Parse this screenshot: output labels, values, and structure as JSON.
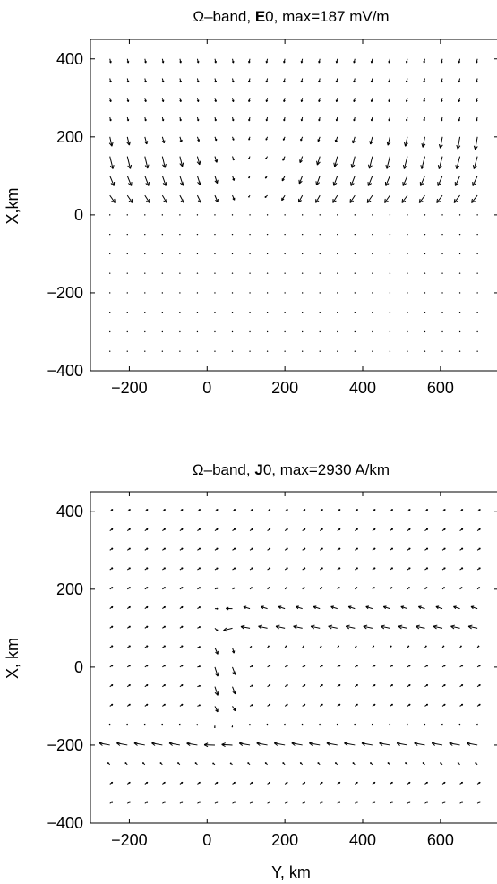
{
  "chart_data": [
    {
      "type": "quiver",
      "title": "Ω–band, E0, max=187 mV/m",
      "title_parts": {
        "prefix": "Ω–band, ",
        "bold": "E",
        "suffix": "0, max=187 mV/m"
      },
      "xlabel": "",
      "ylabel": "X,km",
      "xlim": [
        -300,
        750
      ],
      "ylim": [
        -400,
        450
      ],
      "xticks": [
        "−200",
        "0",
        "200",
        "400",
        "600"
      ],
      "xtick_values": [
        -200,
        0,
        200,
        400,
        600
      ],
      "yticks": [
        "400",
        "200",
        "0",
        "−200",
        "−400"
      ],
      "ytick_values": [
        400,
        200,
        0,
        -200,
        -400
      ],
      "grid": false,
      "field": "electric",
      "max_value": 187,
      "unit": "mV/m"
    },
    {
      "type": "quiver",
      "title": "Ω–band, J0, max=2930 A/km",
      "title_parts": {
        "prefix": "Ω–band, ",
        "bold": "J",
        "suffix": "0, max=2930 A/km"
      },
      "xlabel": "Y, km",
      "ylabel": "X, km",
      "xlim": [
        -300,
        750
      ],
      "ylim": [
        -400,
        450
      ],
      "xticks": [
        "−200",
        "0",
        "200",
        "400",
        "600"
      ],
      "xtick_values": [
        -200,
        0,
        200,
        400,
        600
      ],
      "yticks": [
        "400",
        "200",
        "0",
        "−200",
        "−400"
      ],
      "ytick_values": [
        400,
        200,
        0,
        -200,
        -400
      ],
      "grid": false,
      "field": "current",
      "max_value": 2930,
      "unit": "A/km"
    }
  ]
}
